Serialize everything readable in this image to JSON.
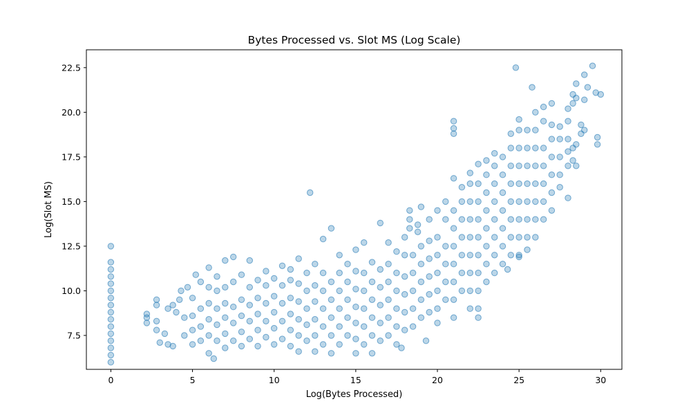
{
  "chart_data": {
    "type": "scatter",
    "title": "Bytes Processed vs. Slot MS (Log Scale)",
    "xlabel": "Log(Bytes Processed)",
    "ylabel": "Log(Slot MS)",
    "xlim": [
      -1.5,
      31.3
    ],
    "ylim": [
      5.6,
      23.5
    ],
    "xticks": [
      0,
      5,
      10,
      15,
      20,
      25,
      30
    ],
    "xtick_labels": [
      "0",
      "5",
      "10",
      "15",
      "20",
      "25",
      "30"
    ],
    "yticks": [
      7.5,
      10.0,
      12.5,
      15.0,
      17.5,
      20.0,
      22.5
    ],
    "ytick_labels": [
      "7.5",
      "10.0",
      "12.5",
      "15.0",
      "17.5",
      "20.0",
      "22.5"
    ],
    "grid": false,
    "marker_color": "#1f77b4",
    "marker_alpha": 0.3,
    "points": [
      [
        0,
        6.0
      ],
      [
        0,
        6.4
      ],
      [
        0,
        6.8
      ],
      [
        0,
        7.2
      ],
      [
        0,
        7.6
      ],
      [
        0,
        8.0
      ],
      [
        0,
        8.4
      ],
      [
        0,
        8.8
      ],
      [
        0,
        9.2
      ],
      [
        0,
        9.6
      ],
      [
        0,
        10.0
      ],
      [
        0,
        10.4
      ],
      [
        0,
        10.8
      ],
      [
        0,
        11.2
      ],
      [
        0,
        11.6
      ],
      [
        0,
        12.5
      ],
      [
        2.2,
        8.2
      ],
      [
        2.2,
        8.5
      ],
      [
        2.2,
        8.7
      ],
      [
        2.8,
        7.8
      ],
      [
        2.8,
        8.3
      ],
      [
        2.8,
        9.2
      ],
      [
        2.8,
        9.5
      ],
      [
        3.0,
        7.1
      ],
      [
        3.3,
        7.6
      ],
      [
        3.5,
        7.0
      ],
      [
        3.5,
        9.0
      ],
      [
        3.8,
        6.9
      ],
      [
        3.8,
        9.2
      ],
      [
        4.0,
        8.8
      ],
      [
        4.2,
        9.5
      ],
      [
        4.3,
        10.0
      ],
      [
        4.5,
        7.5
      ],
      [
        4.5,
        8.5
      ],
      [
        4.7,
        10.2
      ],
      [
        5.0,
        7.0
      ],
      [
        5.0,
        7.8
      ],
      [
        5.0,
        8.6
      ],
      [
        5.0,
        9.6
      ],
      [
        5.2,
        10.9
      ],
      [
        5.5,
        7.2
      ],
      [
        5.5,
        8.0
      ],
      [
        5.5,
        9.0
      ],
      [
        5.5,
        10.5
      ],
      [
        6.0,
        6.5
      ],
      [
        6.0,
        7.5
      ],
      [
        6.0,
        8.4
      ],
      [
        6.0,
        9.3
      ],
      [
        6.0,
        10.2
      ],
      [
        6.0,
        11.3
      ],
      [
        6.3,
        6.2
      ],
      [
        6.5,
        7.2
      ],
      [
        6.5,
        8.1
      ],
      [
        6.5,
        9.0
      ],
      [
        6.5,
        10.0
      ],
      [
        6.5,
        10.8
      ],
      [
        7.0,
        6.8
      ],
      [
        7.0,
        7.6
      ],
      [
        7.0,
        8.5
      ],
      [
        7.0,
        9.3
      ],
      [
        7.0,
        10.2
      ],
      [
        7.0,
        11.7
      ],
      [
        7.5,
        7.2
      ],
      [
        7.5,
        8.2
      ],
      [
        7.5,
        9.1
      ],
      [
        7.5,
        10.5
      ],
      [
        7.5,
        11.9
      ],
      [
        8.0,
        6.9
      ],
      [
        8.0,
        7.7
      ],
      [
        8.0,
        8.6
      ],
      [
        8.0,
        9.5
      ],
      [
        8.0,
        10.9
      ],
      [
        8.5,
        7.3
      ],
      [
        8.5,
        8.3
      ],
      [
        8.5,
        9.2
      ],
      [
        8.5,
        10.2
      ],
      [
        8.5,
        11.7
      ],
      [
        9.0,
        6.9
      ],
      [
        9.0,
        7.8
      ],
      [
        9.0,
        8.7
      ],
      [
        9.0,
        9.6
      ],
      [
        9.0,
        10.6
      ],
      [
        9.5,
        7.4
      ],
      [
        9.5,
        8.3
      ],
      [
        9.5,
        9.3
      ],
      [
        9.5,
        10.3
      ],
      [
        9.5,
        11.1
      ],
      [
        10.0,
        7.0
      ],
      [
        10.0,
        7.9
      ],
      [
        10.0,
        8.8
      ],
      [
        10.0,
        9.7
      ],
      [
        10.0,
        10.7
      ],
      [
        10.5,
        7.3
      ],
      [
        10.5,
        8.3
      ],
      [
        10.5,
        9.3
      ],
      [
        10.5,
        10.3
      ],
      [
        10.5,
        11.4
      ],
      [
        11.0,
        6.9
      ],
      [
        11.0,
        7.8
      ],
      [
        11.0,
        8.7
      ],
      [
        11.0,
        9.6
      ],
      [
        11.0,
        10.6
      ],
      [
        11.0,
        11.2
      ],
      [
        11.5,
        6.6
      ],
      [
        11.5,
        7.5
      ],
      [
        11.5,
        8.4
      ],
      [
        11.5,
        9.4
      ],
      [
        11.5,
        10.4
      ],
      [
        11.5,
        11.8
      ],
      [
        12.0,
        7.2
      ],
      [
        12.0,
        8.1
      ],
      [
        12.0,
        9.0
      ],
      [
        12.0,
        10.0
      ],
      [
        12.0,
        11.0
      ],
      [
        12.2,
        15.5
      ],
      [
        12.5,
        6.6
      ],
      [
        12.5,
        7.5
      ],
      [
        12.5,
        8.4
      ],
      [
        12.5,
        9.4
      ],
      [
        12.5,
        10.3
      ],
      [
        12.5,
        11.5
      ],
      [
        13.0,
        7.0
      ],
      [
        13.0,
        8.0
      ],
      [
        13.0,
        9.0
      ],
      [
        13.0,
        10.0
      ],
      [
        13.0,
        11.0
      ],
      [
        13.0,
        12.9
      ],
      [
        13.5,
        6.5
      ],
      [
        13.5,
        7.5
      ],
      [
        13.5,
        8.5
      ],
      [
        13.5,
        9.5
      ],
      [
        13.5,
        10.5
      ],
      [
        13.5,
        13.5
      ],
      [
        14.0,
        7.0
      ],
      [
        14.0,
        8.0
      ],
      [
        14.0,
        9.0
      ],
      [
        14.0,
        10.0
      ],
      [
        14.0,
        11.0
      ],
      [
        14.0,
        12.0
      ],
      [
        14.5,
        7.5
      ],
      [
        14.5,
        8.5
      ],
      [
        14.5,
        9.5
      ],
      [
        14.5,
        10.5
      ],
      [
        14.5,
        11.5
      ],
      [
        15.0,
        6.5
      ],
      [
        15.0,
        7.3
      ],
      [
        15.0,
        8.2
      ],
      [
        15.0,
        9.1
      ],
      [
        15.0,
        10.1
      ],
      [
        15.0,
        11.1
      ],
      [
        15.0,
        12.3
      ],
      [
        15.5,
        7.0
      ],
      [
        15.5,
        8.0
      ],
      [
        15.5,
        9.0
      ],
      [
        15.5,
        10.0
      ],
      [
        15.5,
        11.0
      ],
      [
        15.5,
        12.7
      ],
      [
        16.0,
        6.5
      ],
      [
        16.0,
        7.5
      ],
      [
        16.0,
        8.5
      ],
      [
        16.0,
        9.5
      ],
      [
        16.0,
        10.5
      ],
      [
        16.0,
        11.6
      ],
      [
        16.5,
        7.2
      ],
      [
        16.5,
        8.2
      ],
      [
        16.5,
        9.2
      ],
      [
        16.5,
        10.2
      ],
      [
        16.5,
        11.2
      ],
      [
        16.5,
        13.8
      ],
      [
        17.0,
        7.5
      ],
      [
        17.0,
        8.5
      ],
      [
        17.0,
        9.5
      ],
      [
        17.0,
        10.5
      ],
      [
        17.0,
        11.5
      ],
      [
        17.0,
        12.7
      ],
      [
        17.5,
        7.0
      ],
      [
        17.5,
        8.0
      ],
      [
        17.5,
        9.0
      ],
      [
        17.5,
        10.0
      ],
      [
        17.5,
        11.0
      ],
      [
        17.5,
        12.2
      ],
      [
        17.8,
        6.8
      ],
      [
        18.0,
        7.8
      ],
      [
        18.0,
        8.8
      ],
      [
        18.0,
        9.8
      ],
      [
        18.0,
        10.8
      ],
      [
        18.0,
        12.0
      ],
      [
        18.0,
        13.0
      ],
      [
        18.3,
        14.0
      ],
      [
        18.3,
        14.5
      ],
      [
        18.3,
        13.5
      ],
      [
        18.5,
        8.0
      ],
      [
        18.5,
        9.0
      ],
      [
        18.5,
        10.0
      ],
      [
        18.5,
        11.0
      ],
      [
        18.5,
        12.0
      ],
      [
        18.8,
        13.3
      ],
      [
        18.8,
        13.7
      ],
      [
        19.0,
        8.5
      ],
      [
        19.0,
        9.5
      ],
      [
        19.0,
        10.5
      ],
      [
        19.0,
        11.5
      ],
      [
        19.0,
        12.5
      ],
      [
        19.0,
        14.7
      ],
      [
        19.3,
        7.2
      ],
      [
        19.5,
        8.8
      ],
      [
        19.5,
        9.8
      ],
      [
        19.5,
        10.8
      ],
      [
        19.5,
        11.8
      ],
      [
        19.5,
        12.8
      ],
      [
        19.5,
        14.0
      ],
      [
        20.0,
        8.2
      ],
      [
        20.0,
        9.0
      ],
      [
        20.0,
        10.0
      ],
      [
        20.0,
        11.0
      ],
      [
        20.0,
        12.0
      ],
      [
        20.0,
        13.0
      ],
      [
        20.0,
        14.5
      ],
      [
        20.5,
        9.5
      ],
      [
        20.5,
        10.5
      ],
      [
        20.5,
        11.5
      ],
      [
        20.5,
        12.5
      ],
      [
        20.5,
        14.0
      ],
      [
        20.5,
        15.0
      ],
      [
        21.0,
        8.5
      ],
      [
        21.0,
        9.5
      ],
      [
        21.0,
        10.5
      ],
      [
        21.0,
        11.5
      ],
      [
        21.0,
        12.5
      ],
      [
        21.0,
        13.5
      ],
      [
        21.0,
        14.5
      ],
      [
        21.0,
        16.3
      ],
      [
        21.0,
        18.8
      ],
      [
        21.0,
        19.1
      ],
      [
        21.0,
        19.5
      ],
      [
        21.5,
        10.0
      ],
      [
        21.5,
        11.0
      ],
      [
        21.5,
        12.0
      ],
      [
        21.5,
        13.0
      ],
      [
        21.5,
        14.0
      ],
      [
        21.5,
        15.0
      ],
      [
        21.5,
        15.8
      ],
      [
        22.0,
        9.0
      ],
      [
        22.0,
        10.0
      ],
      [
        22.0,
        11.0
      ],
      [
        22.0,
        12.0
      ],
      [
        22.0,
        13.0
      ],
      [
        22.0,
        14.0
      ],
      [
        22.0,
        15.0
      ],
      [
        22.0,
        16.0
      ],
      [
        22.0,
        16.6
      ],
      [
        22.5,
        8.5
      ],
      [
        22.5,
        9.0
      ],
      [
        22.5,
        10.0
      ],
      [
        22.5,
        11.0
      ],
      [
        22.5,
        12.0
      ],
      [
        22.5,
        13.0
      ],
      [
        22.5,
        14.0
      ],
      [
        22.5,
        15.0
      ],
      [
        22.5,
        16.0
      ],
      [
        22.5,
        17.1
      ],
      [
        23.0,
        10.5
      ],
      [
        23.0,
        11.5
      ],
      [
        23.0,
        12.5
      ],
      [
        23.0,
        13.5
      ],
      [
        23.0,
        14.5
      ],
      [
        23.0,
        15.5
      ],
      [
        23.0,
        16.5
      ],
      [
        23.0,
        17.3
      ],
      [
        23.5,
        11.0
      ],
      [
        23.5,
        12.0
      ],
      [
        23.5,
        13.0
      ],
      [
        23.5,
        14.0
      ],
      [
        23.5,
        15.0
      ],
      [
        23.5,
        16.0
      ],
      [
        23.5,
        17.0
      ],
      [
        23.5,
        17.7
      ],
      [
        24.0,
        11.5
      ],
      [
        24.0,
        12.5
      ],
      [
        24.0,
        13.5
      ],
      [
        24.0,
        14.5
      ],
      [
        24.0,
        15.5
      ],
      [
        24.0,
        16.5
      ],
      [
        24.0,
        17.5
      ],
      [
        24.3,
        11.2
      ],
      [
        24.5,
        12.0
      ],
      [
        24.5,
        13.0
      ],
      [
        24.5,
        14.0
      ],
      [
        24.5,
        15.0
      ],
      [
        24.5,
        16.0
      ],
      [
        24.5,
        17.0
      ],
      [
        24.5,
        18.0
      ],
      [
        24.5,
        18.8
      ],
      [
        25.0,
        12.0
      ],
      [
        25.0,
        13.0
      ],
      [
        25.0,
        14.0
      ],
      [
        25.0,
        15.0
      ],
      [
        25.0,
        16.0
      ],
      [
        25.0,
        17.0
      ],
      [
        25.0,
        18.0
      ],
      [
        25.0,
        19.0
      ],
      [
        25.0,
        19.6
      ],
      [
        25.0,
        11.9
      ],
      [
        24.8,
        22.5
      ],
      [
        25.5,
        13.0
      ],
      [
        25.5,
        14.0
      ],
      [
        25.5,
        15.0
      ],
      [
        25.5,
        16.0
      ],
      [
        25.5,
        17.0
      ],
      [
        25.5,
        18.0
      ],
      [
        25.5,
        19.0
      ],
      [
        25.5,
        12.3
      ],
      [
        26.0,
        13.0
      ],
      [
        26.0,
        14.0
      ],
      [
        26.0,
        15.0
      ],
      [
        26.0,
        16.0
      ],
      [
        26.0,
        17.0
      ],
      [
        26.0,
        18.0
      ],
      [
        26.0,
        19.0
      ],
      [
        26.0,
        20.0
      ],
      [
        25.8,
        21.4
      ],
      [
        26.5,
        14.0
      ],
      [
        26.5,
        15.0
      ],
      [
        26.5,
        16.0
      ],
      [
        26.5,
        17.0
      ],
      [
        26.5,
        18.0
      ],
      [
        26.5,
        19.5
      ],
      [
        26.5,
        20.3
      ],
      [
        27.0,
        14.5
      ],
      [
        27.0,
        15.5
      ],
      [
        27.0,
        16.5
      ],
      [
        27.0,
        17.5
      ],
      [
        27.0,
        18.5
      ],
      [
        27.0,
        19.3
      ],
      [
        27.0,
        20.5
      ],
      [
        27.5,
        15.8
      ],
      [
        27.5,
        16.5
      ],
      [
        27.5,
        17.5
      ],
      [
        27.5,
        18.5
      ],
      [
        27.5,
        19.2
      ],
      [
        28.0,
        15.2
      ],
      [
        28.0,
        17.0
      ],
      [
        28.0,
        17.8
      ],
      [
        28.0,
        18.5
      ],
      [
        28.0,
        19.5
      ],
      [
        28.0,
        20.2
      ],
      [
        28.3,
        17.3
      ],
      [
        28.3,
        18.0
      ],
      [
        28.3,
        20.5
      ],
      [
        28.3,
        21.0
      ],
      [
        28.5,
        17.0
      ],
      [
        28.5,
        18.2
      ],
      [
        28.5,
        20.8
      ],
      [
        28.5,
        21.6
      ],
      [
        28.8,
        18.8
      ],
      [
        28.8,
        19.3
      ],
      [
        29.0,
        19.0
      ],
      [
        29.0,
        20.7
      ],
      [
        29.0,
        22.1
      ],
      [
        29.2,
        21.4
      ],
      [
        29.5,
        22.6
      ],
      [
        29.7,
        21.1
      ],
      [
        29.8,
        18.2
      ],
      [
        29.8,
        18.6
      ],
      [
        30.0,
        21.0
      ]
    ]
  }
}
